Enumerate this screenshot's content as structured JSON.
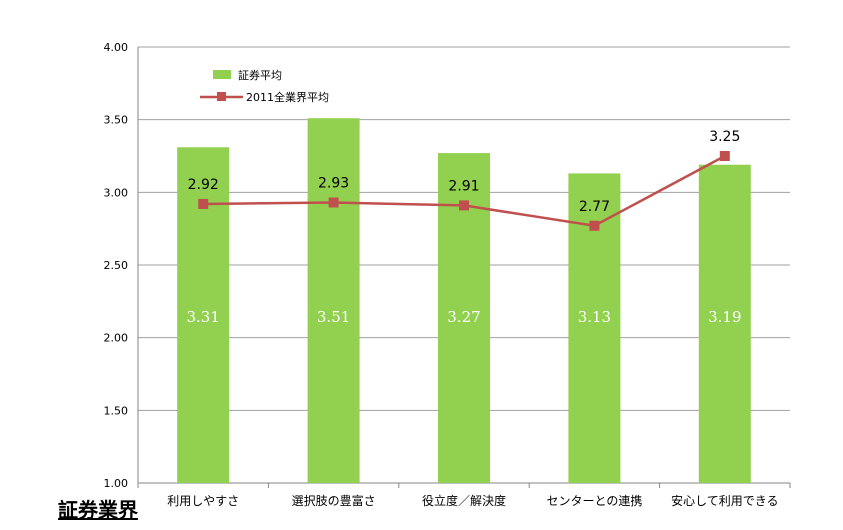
{
  "section_title": "証券業界",
  "colors": {
    "bar": "#92D050",
    "line": "#C0504D",
    "grid": "#A0A0A0"
  },
  "chart_data": {
    "type": "bar",
    "categories": [
      "利用しやすさ",
      "選択肢の豊富さ",
      "役立度／解決度",
      "センターとの連携",
      "安心して利用できる"
    ],
    "series": [
      {
        "name": "証券平均",
        "type": "bar",
        "values": [
          3.31,
          3.51,
          3.27,
          3.13,
          3.19
        ]
      },
      {
        "name": "2011全業界平均",
        "type": "line",
        "values": [
          2.92,
          2.93,
          2.91,
          2.77,
          3.25
        ]
      }
    ],
    "value_labels": {
      "bar": [
        "3.31",
        "3.51",
        "3.27",
        "3.13",
        "3.19"
      ],
      "line": [
        "2.92",
        "2.93",
        "2.91",
        "2.77",
        "3.25"
      ]
    },
    "y_ticks": [
      "1.00",
      "1.50",
      "2.00",
      "2.50",
      "3.00",
      "3.50",
      "4.00"
    ],
    "ylim": [
      1.0,
      4.0
    ],
    "grid": true,
    "legend_position": "top-left"
  }
}
